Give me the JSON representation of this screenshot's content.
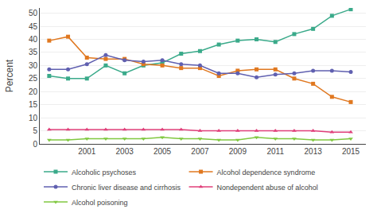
{
  "chart_data": {
    "type": "line",
    "x": [
      1999,
      2000,
      2001,
      2002,
      2003,
      2004,
      2005,
      2006,
      2007,
      2008,
      2009,
      2010,
      2011,
      2012,
      2013,
      2014,
      2015
    ],
    "series": [
      {
        "name": "Alcoholic psychoses",
        "color": "#3aaa8a",
        "marker": "square",
        "values": [
          26.0,
          25.0,
          25.0,
          30.0,
          27.0,
          30.0,
          31.0,
          34.5,
          35.5,
          38.0,
          39.5,
          40.0,
          39.0,
          42.0,
          44.0,
          49.0,
          51.5
        ]
      },
      {
        "name": "Alcohol dependence syndrome",
        "color": "#e07820",
        "marker": "square",
        "values": [
          39.5,
          41.0,
          33.0,
          32.5,
          32.5,
          30.5,
          30.0,
          29.0,
          29.0,
          26.0,
          28.0,
          28.5,
          28.5,
          25.0,
          23.0,
          18.0,
          16.0
        ]
      },
      {
        "name": "Chronic liver disease and cirrhosis",
        "color": "#6060b0",
        "marker": "circle",
        "values": [
          28.5,
          28.5,
          30.5,
          34.0,
          32.0,
          31.5,
          32.0,
          30.5,
          30.0,
          27.0,
          27.0,
          25.5,
          26.5,
          27.0,
          28.0,
          28.0,
          27.5
        ]
      },
      {
        "name": "Nondependent abuse of alcohol",
        "color": "#e0407a",
        "marker": "triangle-up",
        "values": [
          5.5,
          5.5,
          5.5,
          5.5,
          5.5,
          5.5,
          5.5,
          5.5,
          5.0,
          5.0,
          5.0,
          5.0,
          5.0,
          5.0,
          5.0,
          4.5,
          4.5
        ]
      },
      {
        "name": "Alcohol poisoning",
        "color": "#80c840",
        "marker": "triangle-down",
        "values": [
          1.5,
          1.5,
          2.0,
          2.0,
          2.0,
          2.0,
          2.5,
          2.0,
          2.0,
          1.5,
          1.5,
          2.5,
          2.0,
          2.0,
          1.5,
          1.5,
          2.0
        ]
      }
    ],
    "ylabel": "Percent",
    "xlim": [
      1998.5,
      2015.8
    ],
    "xticks": [
      2001,
      2003,
      2005,
      2007,
      2009,
      2011,
      2013,
      2015
    ],
    "ylim": [
      0,
      52
    ],
    "yticks": [
      0,
      5,
      10,
      15,
      20,
      25,
      30,
      35,
      40,
      45,
      50
    ],
    "grid": true,
    "legend": "bottom"
  }
}
